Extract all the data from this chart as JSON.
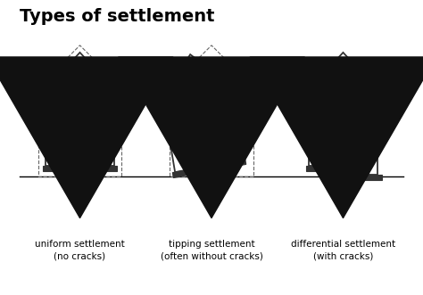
{
  "title": "Types of settlement",
  "title_fontsize": 14,
  "title_fontweight": "bold",
  "labels": [
    "uniform settlement\n(no cracks)",
    "tipping settlement\n(often without cracks)",
    "differential settlement\n(with cracks)"
  ],
  "label_fontsize": 7.5,
  "house_color": "#333333",
  "stripe_color": "#555555",
  "white": "#ffffff",
  "gray": "#aaaaaa",
  "win_color": "#cccccc",
  "dash_color": "#666666",
  "arrow_color": "#111111"
}
